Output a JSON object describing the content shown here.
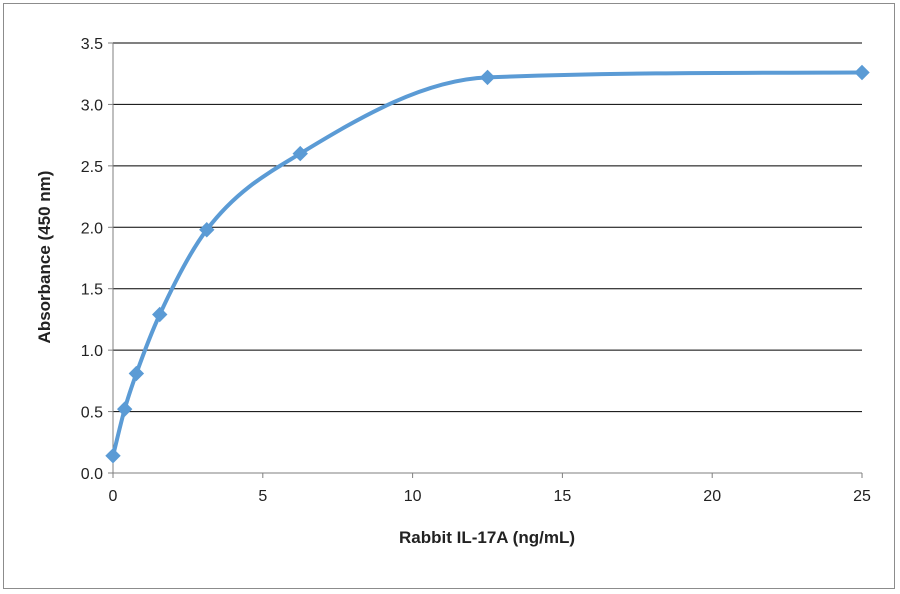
{
  "chart_data": {
    "type": "line",
    "title": "",
    "xlabel": "Rabbit IL-17A  (ng/mL)",
    "ylabel": "Absorbance  (450  nm)",
    "xlim": [
      0,
      25
    ],
    "ylim": [
      0,
      3.5
    ],
    "x_ticks": [
      "0",
      "5",
      "10",
      "15",
      "20",
      "25"
    ],
    "y_ticks": [
      "0.0",
      "0.5",
      "1.0",
      "1.5",
      "2.0",
      "2.5",
      "3.0",
      "3.5"
    ],
    "grid": "horizontal",
    "legend": "none",
    "series": [
      {
        "color": "#5b9bd5",
        "marker": "diamond",
        "smooth": true,
        "points": [
          {
            "x": 0,
            "y": 0.14
          },
          {
            "x": 0.39,
            "y": 0.52
          },
          {
            "x": 0.78,
            "y": 0.81
          },
          {
            "x": 1.56,
            "y": 1.29
          },
          {
            "x": 3.13,
            "y": 1.98
          },
          {
            "x": 6.25,
            "y": 2.6
          },
          {
            "x": 12.5,
            "y": 3.22
          },
          {
            "x": 25,
            "y": 3.26
          }
        ]
      }
    ]
  }
}
